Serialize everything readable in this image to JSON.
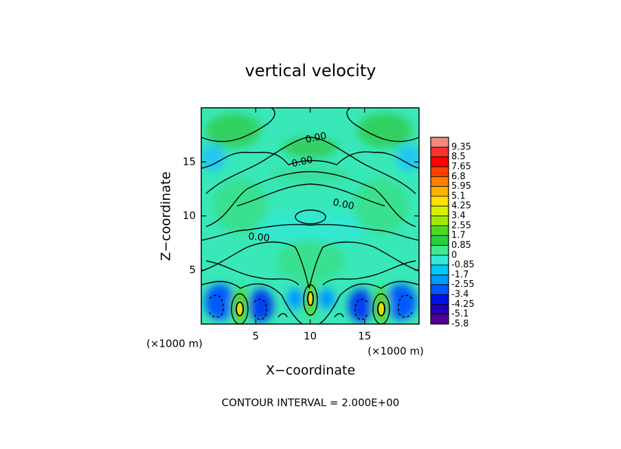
{
  "chart_data": {
    "type": "contour",
    "title": "vertical velocity",
    "xlabel": "X−coordinate",
    "ylabel": "Z−coordinate",
    "xunit": "(×1000 m)",
    "yunit": "(×1000 m)",
    "xlim": [
      0,
      20
    ],
    "xticks": [
      5,
      10,
      15
    ],
    "ylim": [
      0,
      20
    ],
    "yticks": [
      5,
      10,
      15
    ],
    "contour_labels": [
      "0.00",
      "0.00",
      "0.00",
      "0.00"
    ],
    "footer": "CONTOUR INTERVAL = 2.000E+00",
    "colorbar": {
      "levels": [
        9.35,
        8.5,
        7.65,
        6.8,
        5.95,
        5.1,
        4.25,
        3.4,
        2.55,
        1.7,
        0.85,
        0,
        -0.85,
        -1.7,
        -2.55,
        -3.4,
        -4.25,
        -5.1,
        -5.8
      ],
      "colors": [
        "#f08a80",
        "#ff3030",
        "#ff0000",
        "#ff4000",
        "#ff8000",
        "#ffb000",
        "#ffe000",
        "#d8f000",
        "#a0e800",
        "#50d820",
        "#28d040",
        "#40e890",
        "#30e8d8",
        "#00c8f8",
        "#0098ff",
        "#0058ff",
        "#0010e8",
        "#2000b8",
        "#50009a"
      ]
    }
  }
}
